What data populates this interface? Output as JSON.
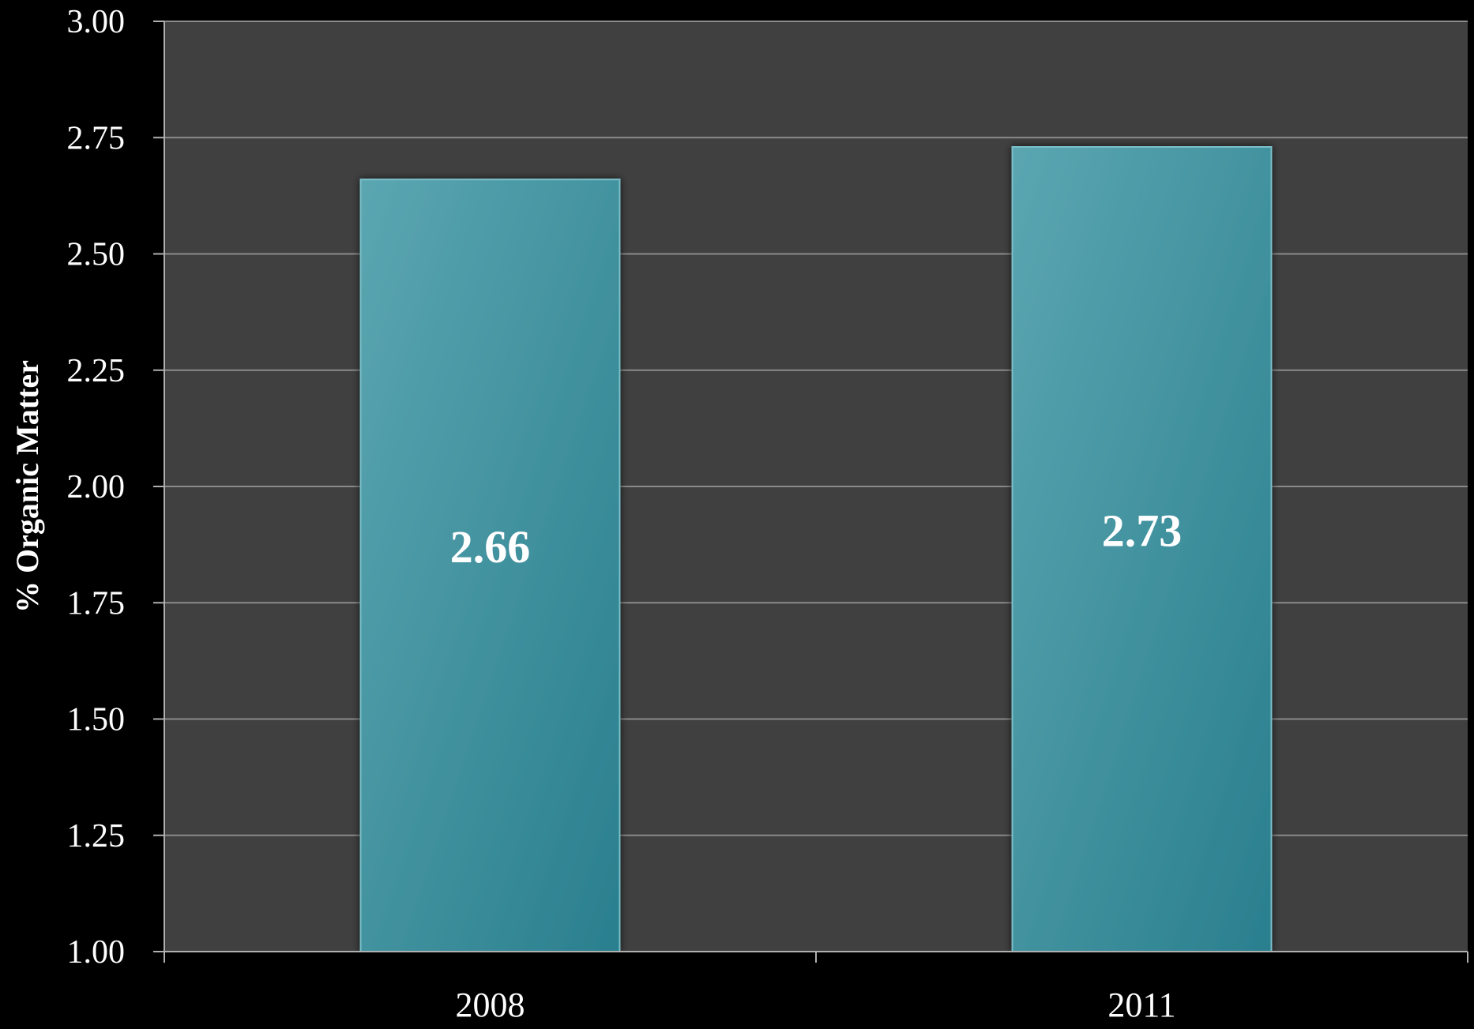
{
  "chart_data": {
    "type": "bar",
    "categories": [
      "2008",
      "2011"
    ],
    "values": [
      2.66,
      2.73
    ],
    "data_labels": [
      "2.66",
      "2.73"
    ],
    "title": "",
    "xlabel": "",
    "ylabel": "% Organic Matter",
    "ylim": [
      1.0,
      3.0
    ],
    "yticks": [
      "1.00",
      "1.25",
      "1.50",
      "1.75",
      "2.00",
      "2.25",
      "2.50",
      "2.75",
      "3.00"
    ],
    "grid": true,
    "legend": "none",
    "colors": {
      "background": "#000000",
      "plot_area": "#404040",
      "gridline": "#8a8a8a",
      "axis": "#b0b0b0",
      "bar_top": "#5ba6b1",
      "bar_bottom": "#2a7f8e",
      "text": "#ffffff"
    }
  }
}
